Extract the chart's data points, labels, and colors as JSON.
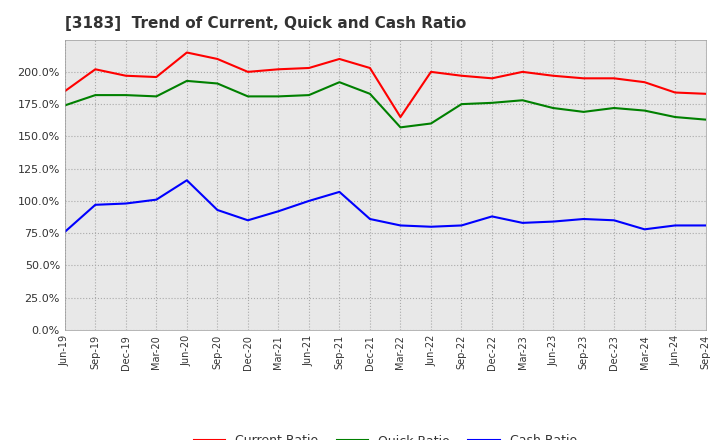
{
  "title": "[3183]  Trend of Current, Quick and Cash Ratio",
  "x_labels": [
    "Jun-19",
    "Sep-19",
    "Dec-19",
    "Mar-20",
    "Jun-20",
    "Sep-20",
    "Dec-20",
    "Mar-21",
    "Jun-21",
    "Sep-21",
    "Dec-21",
    "Mar-22",
    "Jun-22",
    "Sep-22",
    "Dec-22",
    "Mar-23",
    "Jun-23",
    "Sep-23",
    "Dec-23",
    "Mar-24",
    "Jun-24",
    "Sep-24"
  ],
  "current_ratio": [
    185,
    202,
    197,
    196,
    215,
    210,
    200,
    202,
    203,
    210,
    203,
    165,
    200,
    197,
    195,
    200,
    197,
    195,
    195,
    192,
    184,
    183
  ],
  "quick_ratio": [
    174,
    182,
    182,
    181,
    193,
    191,
    181,
    181,
    182,
    192,
    183,
    157,
    160,
    175,
    176,
    178,
    172,
    169,
    172,
    170,
    165,
    163
  ],
  "cash_ratio": [
    76,
    97,
    98,
    101,
    116,
    93,
    85,
    92,
    100,
    107,
    86,
    81,
    80,
    81,
    88,
    83,
    84,
    86,
    85,
    78,
    81,
    81
  ],
  "ylim": [
    0,
    225
  ],
  "yticks": [
    0,
    25,
    50,
    75,
    100,
    125,
    150,
    175,
    200
  ],
  "line_colors": {
    "current": "#ff0000",
    "quick": "#008000",
    "cash": "#0000ff"
  },
  "legend_labels": [
    "Current Ratio",
    "Quick Ratio",
    "Cash Ratio"
  ],
  "background_color": "#ffffff",
  "grid_color": "#aaaaaa",
  "plot_bg_color": "#e8e8e8"
}
